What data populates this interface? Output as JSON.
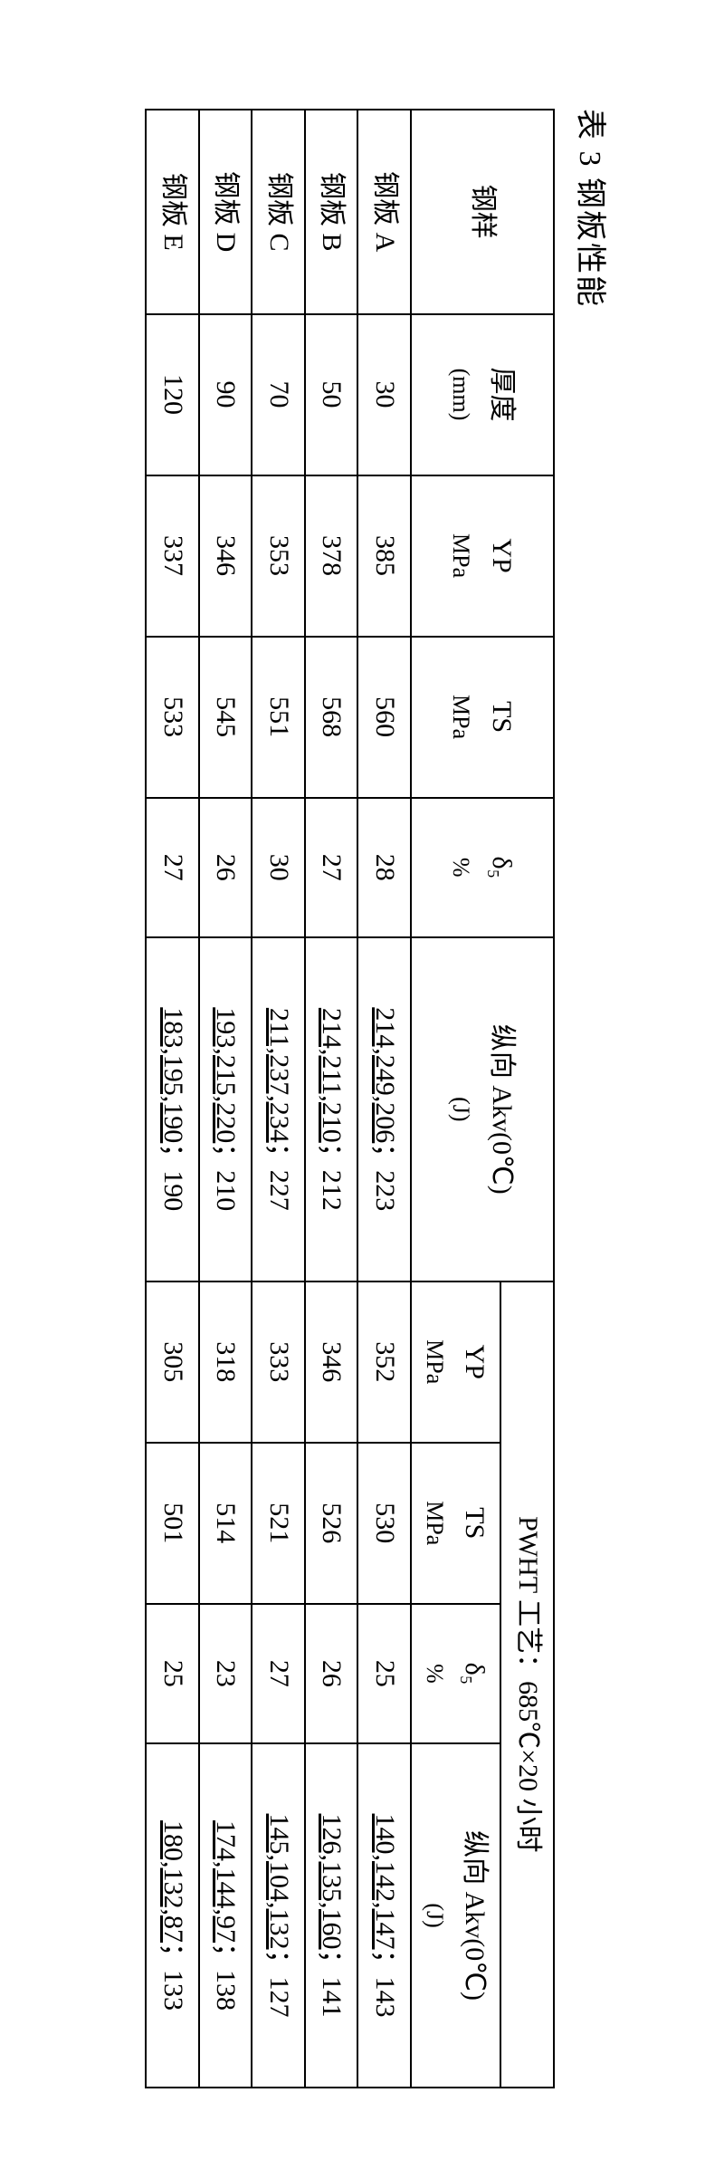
{
  "caption": "表 3  钢板性能",
  "header": {
    "sample": "钢样",
    "thickness_label": "厚度",
    "thickness_unit": "(mm)",
    "yp_label": "YP",
    "yp_unit": "MPa",
    "ts_label": "TS",
    "ts_unit": "MPa",
    "d5_label": "δ₅",
    "d5_unit": "%",
    "akv_label": "纵向 Akv(0℃)",
    "akv_unit": "(J)",
    "pwht_title": "PWHT 工艺：685℃×20 小时",
    "yp2_label": "YP",
    "yp2_unit": "MPa",
    "ts2_label": "TS",
    "ts2_unit": "MPa",
    "d52_label": "δ₅",
    "d52_unit": "%",
    "akv2_label": "纵向 Akv(0℃)",
    "akv2_unit": "(J)"
  },
  "rows": [
    {
      "sample": "钢板 A",
      "thickness": "30",
      "yp": "385",
      "ts": "560",
      "d5": "28",
      "akv_vals": "214,249,206",
      "akv_avg": "；223",
      "yp2": "352",
      "ts2": "530",
      "d52": "25",
      "akv2_vals": "140,142,147",
      "akv2_avg": "；143"
    },
    {
      "sample": "钢板 B",
      "thickness": "50",
      "yp": "378",
      "ts": "568",
      "d5": "27",
      "akv_vals": "214,211,210",
      "akv_avg": "；212",
      "yp2": "346",
      "ts2": "526",
      "d52": "26",
      "akv2_vals": "126,135,160",
      "akv2_avg": "；141"
    },
    {
      "sample": "钢板 C",
      "thickness": "70",
      "yp": "353",
      "ts": "551",
      "d5": "30",
      "akv_vals": "211,237,234",
      "akv_avg": "；227",
      "yp2": "333",
      "ts2": "521",
      "d52": "27",
      "akv2_vals": "145,104,132",
      "akv2_avg": "；127"
    },
    {
      "sample": "钢板 D",
      "thickness": "90",
      "yp": "346",
      "ts": "545",
      "d5": "26",
      "akv_vals": "193,215,220",
      "akv_avg": "；210",
      "yp2": "318",
      "ts2": "514",
      "d52": "23",
      "akv2_vals": "174,144,97",
      "akv2_avg": "；138"
    },
    {
      "sample": "钢板 E",
      "thickness": "120",
      "yp": "337",
      "ts": "533",
      "d5": "27",
      "akv_vals": "183,195,190",
      "akv_avg": "；190",
      "yp2": "305",
      "ts2": "501",
      "d52": "25",
      "akv2_vals": "180,132,87",
      "akv2_avg": "；133"
    }
  ]
}
